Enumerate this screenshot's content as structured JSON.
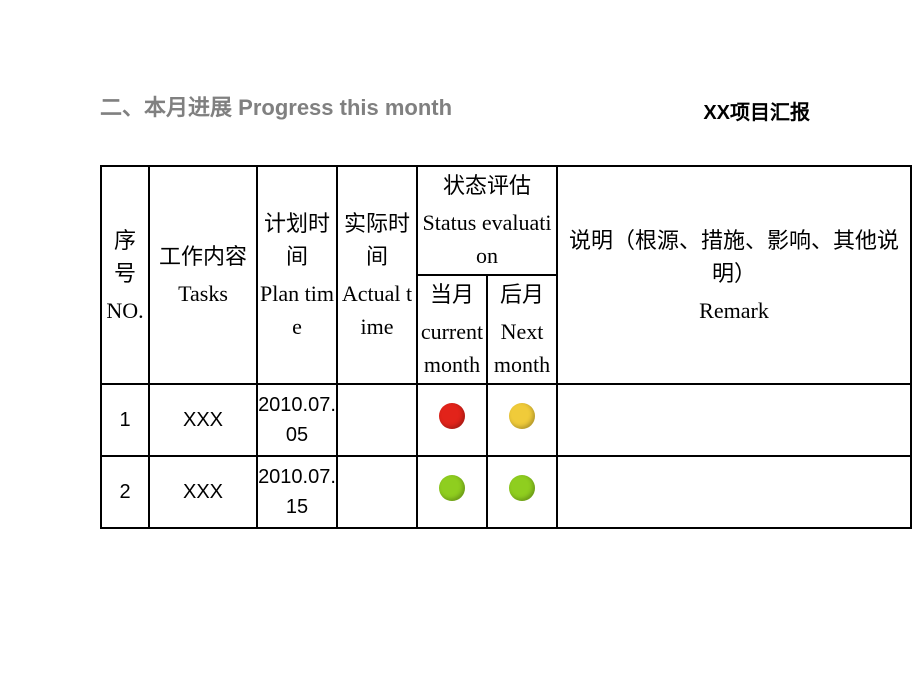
{
  "header": {
    "section_title_cn": "二、本月进展",
    "section_title_en": "Progress this month",
    "project_label": "XX项目汇报"
  },
  "columns": {
    "no": {
      "cn": "序号",
      "en": "NO."
    },
    "tasks": {
      "cn": "工作内容",
      "en": "Tasks"
    },
    "plan": {
      "cn": "计划时间",
      "en": "Plan time"
    },
    "actual": {
      "cn": "实际时间",
      "en": "Actual time"
    },
    "status": {
      "cn": "状态评估",
      "en": "Status evaluation"
    },
    "cur": {
      "cn": "当月",
      "en": "current month"
    },
    "next": {
      "cn": "后月",
      "en": "Next month"
    },
    "remark": {
      "cn": "说明（根源、措施、影响、其他说明）",
      "en": "Remark"
    }
  },
  "status_colors": {
    "red": "#e2231a",
    "yellow": "#f0cb3a",
    "green": "#8fce1f"
  },
  "rows": [
    {
      "no": "1",
      "tasks": "XXX",
      "plan_time": "2010.07.05",
      "actual_time": "",
      "current_color": "red",
      "next_color": "yellow",
      "remark": ""
    },
    {
      "no": "2",
      "tasks": "XXX",
      "plan_time": "2010.07.15",
      "actual_time": "",
      "current_color": "green",
      "next_color": "green",
      "remark": ""
    }
  ]
}
